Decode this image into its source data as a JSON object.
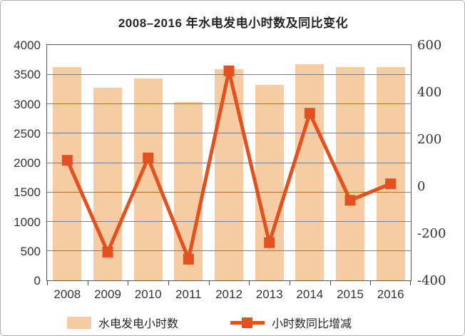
{
  "title": "2008–2016 年水电发电小时数及同比变化",
  "colors": {
    "bar": "#F8CCA2",
    "line": "#E3521E",
    "grid": "#7D7D7D",
    "axis": "#595959",
    "text": "#262626"
  },
  "chart_data": {
    "type": "bar",
    "subtype": "combo-bar-line-dual-axis",
    "title": "2008–2016 年水电发电小时数及同比变化",
    "categories": [
      "2008",
      "2009",
      "2010",
      "2011",
      "2012",
      "2013",
      "2014",
      "2015",
      "2016"
    ],
    "series": [
      {
        "name": "水电发电小时数",
        "type": "bar",
        "y_axis": "left",
        "values": [
          3620,
          3270,
          3430,
          3030,
          3590,
          3320,
          3670,
          3620,
          3620
        ]
      },
      {
        "name": "小时数同比增减",
        "type": "line",
        "y_axis": "right",
        "values": [
          110,
          -280,
          120,
          -310,
          490,
          -240,
          310,
          -60,
          10
        ]
      }
    ],
    "left_axis": {
      "min": 0,
      "max": 4000,
      "step": 500,
      "tick_labels": [
        "4000",
        "3500",
        "3000",
        "2500",
        "2000",
        "1500",
        "1000",
        "500",
        "0"
      ]
    },
    "right_axis": {
      "min": -400,
      "max": 600,
      "step": 200,
      "tick_labels": [
        "600",
        "400",
        "200",
        "0",
        "-200",
        "-400"
      ]
    },
    "grid": true,
    "gridlines_over_bars": true,
    "legend_position": "bottom"
  }
}
